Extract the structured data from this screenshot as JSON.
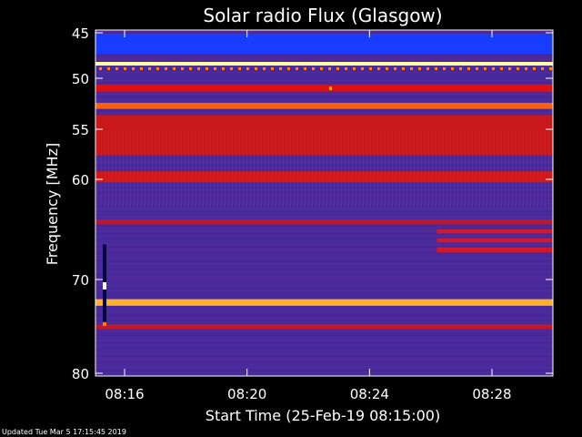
{
  "chart_data": {
    "type": "heatmap",
    "title": "Solar radio Flux (Glasgow)",
    "xlabel": "Start Time (25-Feb-19 08:15:00)",
    "ylabel": "Frequency [MHz]",
    "x_unit": "minutes after 08:15:00",
    "xlim": [
      0,
      15.3
    ],
    "ylim": [
      45,
      80
    ],
    "y_inverted": true,
    "x_ticks": [
      {
        "value": 1,
        "label": "08:16"
      },
      {
        "value": 5,
        "label": "08:20"
      },
      {
        "value": 9,
        "label": "08:24"
      },
      {
        "value": 13,
        "label": "08:28"
      }
    ],
    "y_ticks": [
      {
        "value": 45,
        "label": "45"
      },
      {
        "value": 50,
        "label": "50"
      },
      {
        "value": 55,
        "label": "55"
      },
      {
        "value": 60,
        "label": "60"
      },
      {
        "value": 70,
        "label": "70"
      },
      {
        "value": 80,
        "label": "80"
      }
    ],
    "y_scale": "nonlinear (compressed toward higher frequency)",
    "colormap": [
      "#000000",
      "#0000ff",
      "#5a2fb0",
      "#ff0000",
      "#ffd000",
      "#ffffff"
    ],
    "colors": {
      "background_band": "#4a2a9a",
      "interference_band": "#e01010",
      "strong_line": "#ffa000",
      "low_freq_block": "#1a3cff"
    },
    "bands": [
      {
        "from_mhz": 45.1,
        "to_mhz": 47.3,
        "level": "low",
        "color": "#1a3cff"
      },
      {
        "from_mhz": 48.2,
        "to_mhz": 48.6,
        "level": "saturated",
        "color": "#ffffa0"
      },
      {
        "from_mhz": 50.6,
        "to_mhz": 51.3,
        "level": "high",
        "color": "#e01010"
      },
      {
        "from_mhz": 52.4,
        "to_mhz": 53.0,
        "level": "very high",
        "color": "#ff6010"
      },
      {
        "from_mhz": 53.6,
        "to_mhz": 57.6,
        "level": "high",
        "color": "#c8181c"
      },
      {
        "from_mhz": 59.2,
        "to_mhz": 60.3,
        "level": "high",
        "color": "#d01818"
      },
      {
        "from_mhz": 64.0,
        "to_mhz": 64.5,
        "level": "medium",
        "color": "#b81830"
      },
      {
        "from_mhz": 72.1,
        "to_mhz": 72.8,
        "level": "saturated",
        "color": "#ffb030"
      },
      {
        "from_mhz": 74.8,
        "to_mhz": 75.3,
        "level": "medium",
        "color": "#c01828"
      }
    ],
    "events": [
      {
        "x_start": 11.2,
        "x_end": 15.3,
        "from_mhz": 65.0,
        "to_mhz": 67.5,
        "note": "extra red lines after ~08:26"
      },
      {
        "x_start": 0.2,
        "x_end": 0.5,
        "from_mhz": 66.5,
        "to_mhz": 74.5,
        "note": "short vertical burst"
      }
    ]
  },
  "footer": "Updated Tue Mar  5 17:15:45 2019"
}
